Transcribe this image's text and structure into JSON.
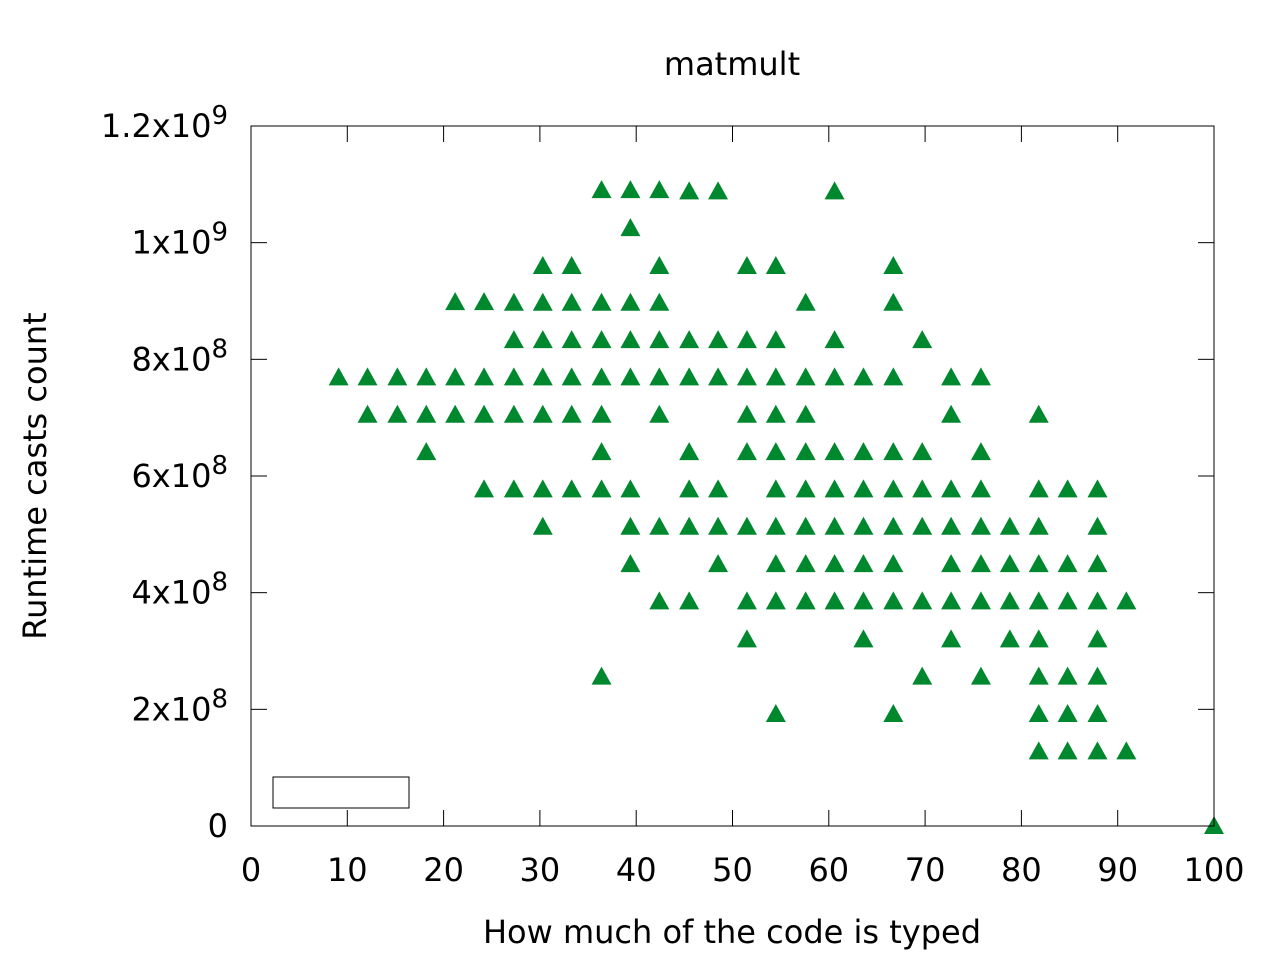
{
  "chart_data": {
    "type": "scatter",
    "title": "matmult",
    "xlabel": "How much of the code is typed",
    "ylabel": "Runtime casts count",
    "xlim": [
      0,
      100
    ],
    "ylim": [
      0,
      1200000000
    ],
    "xticks": [
      "0",
      "10",
      "20",
      "30",
      "40",
      "50",
      "60",
      "70",
      "80",
      "90",
      "100"
    ],
    "yticks": [
      {
        "base": "0",
        "exp": ""
      },
      {
        "base": "2x10",
        "exp": "8"
      },
      {
        "base": "4x10",
        "exp": "8"
      },
      {
        "base": "6x10",
        "exp": "8"
      },
      {
        "base": "8x10",
        "exp": "8"
      },
      {
        "base": "1x10",
        "exp": "9"
      },
      {
        "base": "1.2x10",
        "exp": "9"
      }
    ],
    "grid": false,
    "legend": {
      "position": "bottom-left",
      "entries": []
    },
    "marker": "triangle-up",
    "series": [
      {
        "color": "#00882f",
        "points": [
          [
            36.4,
            1090000000
          ],
          [
            39.4,
            1090000000
          ],
          [
            42.4,
            1090000000
          ],
          [
            45.5,
            1088000000
          ],
          [
            48.5,
            1088000000
          ],
          [
            60.6,
            1088000000
          ],
          [
            39.4,
            1025000000
          ],
          [
            30.3,
            960000000
          ],
          [
            33.3,
            960000000
          ],
          [
            42.4,
            960000000
          ],
          [
            51.5,
            960000000
          ],
          [
            54.5,
            960000000
          ],
          [
            66.7,
            960000000
          ],
          [
            21.2,
            898000000
          ],
          [
            24.2,
            898000000
          ],
          [
            27.3,
            897000000
          ],
          [
            30.3,
            897000000
          ],
          [
            33.3,
            897000000
          ],
          [
            36.4,
            897000000
          ],
          [
            39.4,
            897000000
          ],
          [
            42.4,
            897000000
          ],
          [
            57.6,
            897000000
          ],
          [
            66.7,
            897000000
          ],
          [
            27.3,
            833000000
          ],
          [
            30.3,
            833000000
          ],
          [
            33.3,
            833000000
          ],
          [
            36.4,
            833000000
          ],
          [
            39.4,
            833000000
          ],
          [
            42.4,
            833000000
          ],
          [
            45.5,
            833000000
          ],
          [
            48.5,
            833000000
          ],
          [
            51.5,
            833000000
          ],
          [
            54.5,
            833000000
          ],
          [
            60.6,
            833000000
          ],
          [
            69.7,
            833000000
          ],
          [
            9.1,
            769000000
          ],
          [
            12.1,
            769000000
          ],
          [
            15.2,
            769000000
          ],
          [
            18.2,
            769000000
          ],
          [
            21.2,
            769000000
          ],
          [
            24.2,
            769000000
          ],
          [
            27.3,
            769000000
          ],
          [
            30.3,
            769000000
          ],
          [
            33.3,
            769000000
          ],
          [
            36.4,
            769000000
          ],
          [
            39.4,
            769000000
          ],
          [
            42.4,
            769000000
          ],
          [
            45.5,
            769000000
          ],
          [
            48.5,
            769000000
          ],
          [
            51.5,
            769000000
          ],
          [
            54.5,
            769000000
          ],
          [
            57.6,
            769000000
          ],
          [
            60.6,
            769000000
          ],
          [
            63.6,
            769000000
          ],
          [
            66.7,
            769000000
          ],
          [
            72.7,
            769000000
          ],
          [
            75.8,
            769000000
          ],
          [
            12.1,
            705000000
          ],
          [
            15.2,
            705000000
          ],
          [
            18.2,
            705000000
          ],
          [
            21.2,
            705000000
          ],
          [
            24.2,
            705000000
          ],
          [
            27.3,
            705000000
          ],
          [
            30.3,
            705000000
          ],
          [
            33.3,
            705000000
          ],
          [
            36.4,
            705000000
          ],
          [
            42.4,
            705000000
          ],
          [
            51.5,
            705000000
          ],
          [
            54.5,
            705000000
          ],
          [
            57.6,
            705000000
          ],
          [
            72.7,
            705000000
          ],
          [
            81.8,
            705000000
          ],
          [
            18.2,
            641000000
          ],
          [
            36.4,
            641000000
          ],
          [
            45.5,
            641000000
          ],
          [
            51.5,
            641000000
          ],
          [
            54.5,
            641000000
          ],
          [
            57.6,
            641000000
          ],
          [
            60.6,
            641000000
          ],
          [
            63.6,
            641000000
          ],
          [
            66.7,
            641000000
          ],
          [
            69.7,
            641000000
          ],
          [
            75.8,
            641000000
          ],
          [
            24.2,
            577000000
          ],
          [
            27.3,
            577000000
          ],
          [
            30.3,
            577000000
          ],
          [
            33.3,
            577000000
          ],
          [
            36.4,
            577000000
          ],
          [
            39.4,
            577000000
          ],
          [
            45.5,
            577000000
          ],
          [
            48.5,
            577000000
          ],
          [
            54.5,
            577000000
          ],
          [
            57.6,
            577000000
          ],
          [
            60.6,
            577000000
          ],
          [
            63.6,
            577000000
          ],
          [
            66.7,
            577000000
          ],
          [
            69.7,
            577000000
          ],
          [
            72.7,
            577000000
          ],
          [
            75.8,
            577000000
          ],
          [
            81.8,
            577000000
          ],
          [
            84.8,
            577000000
          ],
          [
            87.9,
            577000000
          ],
          [
            30.3,
            513000000
          ],
          [
            39.4,
            513000000
          ],
          [
            42.4,
            513000000
          ],
          [
            45.5,
            513000000
          ],
          [
            48.5,
            513000000
          ],
          [
            51.5,
            513000000
          ],
          [
            54.5,
            513000000
          ],
          [
            57.6,
            513000000
          ],
          [
            60.6,
            513000000
          ],
          [
            63.6,
            513000000
          ],
          [
            66.7,
            513000000
          ],
          [
            69.7,
            513000000
          ],
          [
            72.7,
            513000000
          ],
          [
            75.8,
            513000000
          ],
          [
            78.8,
            513000000
          ],
          [
            81.8,
            513000000
          ],
          [
            87.9,
            513000000
          ],
          [
            39.4,
            449000000
          ],
          [
            48.5,
            449000000
          ],
          [
            54.5,
            449000000
          ],
          [
            57.6,
            449000000
          ],
          [
            60.6,
            449000000
          ],
          [
            63.6,
            449000000
          ],
          [
            66.7,
            449000000
          ],
          [
            72.7,
            449000000
          ],
          [
            75.8,
            449000000
          ],
          [
            78.8,
            449000000
          ],
          [
            81.8,
            449000000
          ],
          [
            84.8,
            449000000
          ],
          [
            87.9,
            449000000
          ],
          [
            42.4,
            385000000
          ],
          [
            45.5,
            385000000
          ],
          [
            51.5,
            385000000
          ],
          [
            54.5,
            385000000
          ],
          [
            57.6,
            385000000
          ],
          [
            60.6,
            385000000
          ],
          [
            63.6,
            385000000
          ],
          [
            66.7,
            385000000
          ],
          [
            69.7,
            385000000
          ],
          [
            72.7,
            385000000
          ],
          [
            75.8,
            385000000
          ],
          [
            78.8,
            385000000
          ],
          [
            81.8,
            385000000
          ],
          [
            84.8,
            385000000
          ],
          [
            87.9,
            385000000
          ],
          [
            90.9,
            385000000
          ],
          [
            51.5,
            320000000
          ],
          [
            63.6,
            320000000
          ],
          [
            72.7,
            320000000
          ],
          [
            78.8,
            320000000
          ],
          [
            81.8,
            320000000
          ],
          [
            87.9,
            320000000
          ],
          [
            36.4,
            256000000
          ],
          [
            69.7,
            256000000
          ],
          [
            75.8,
            256000000
          ],
          [
            81.8,
            256000000
          ],
          [
            84.8,
            256000000
          ],
          [
            87.9,
            256000000
          ],
          [
            54.5,
            192000000
          ],
          [
            66.7,
            192000000
          ],
          [
            81.8,
            192000000
          ],
          [
            84.8,
            192000000
          ],
          [
            87.9,
            192000000
          ],
          [
            81.8,
            128000000
          ],
          [
            84.8,
            128000000
          ],
          [
            87.9,
            128000000
          ],
          [
            90.9,
            128000000
          ],
          [
            100,
            0
          ]
        ]
      }
    ]
  }
}
